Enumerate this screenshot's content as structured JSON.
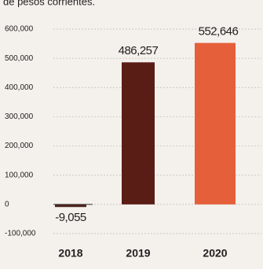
{
  "chart_data": {
    "type": "bar",
    "subtitle": "de pesos corrientes.",
    "categories": [
      "2018",
      "2019",
      "2020"
    ],
    "values": [
      -9055,
      486257,
      552646
    ],
    "value_labels": [
      "-9,055",
      "486,257",
      "552,646"
    ],
    "colors": [
      "#4a2620",
      "#5a1d15",
      "#e5603a"
    ],
    "ylim": [
      -100000,
      600000
    ],
    "yticks": [
      {
        "value": -100000,
        "label": "-100,000"
      },
      0,
      {
        "value": 100000,
        "label": "100,000"
      },
      {
        "value": 200000,
        "label": "200,000"
      },
      {
        "value": 300000,
        "label": "300,000"
      },
      {
        "value": 400000,
        "label": "400,000"
      },
      {
        "value": 500000,
        "label": "500,000"
      },
      {
        "value": 600000,
        "label": "600,000"
      }
    ],
    "grid": true
  }
}
